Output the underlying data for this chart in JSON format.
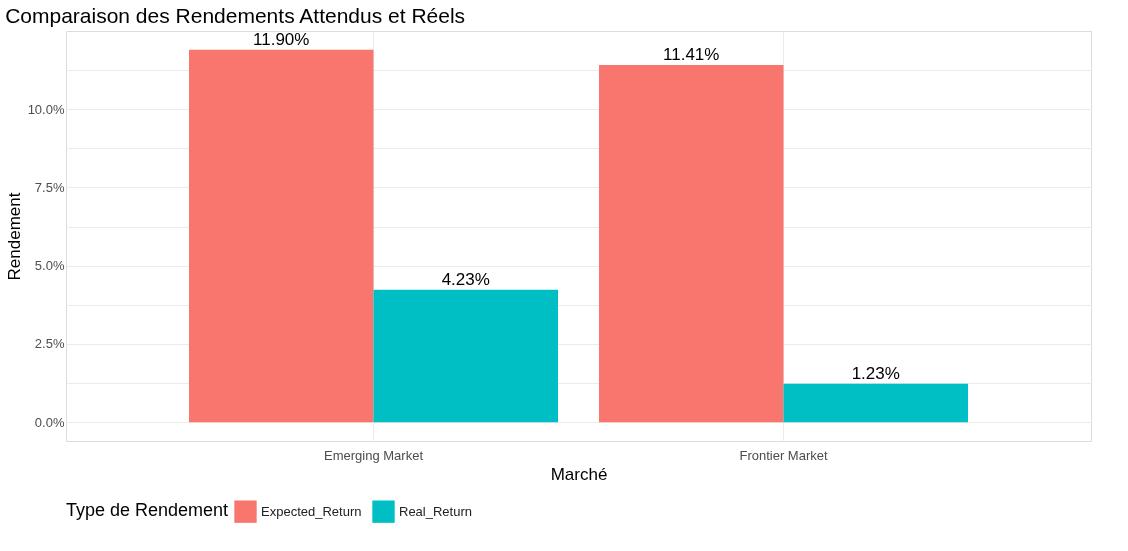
{
  "chart_data": {
    "type": "bar",
    "title": "Comparaison des Rendements Attendus et Réels",
    "xlabel": "Marché",
    "ylabel": "Rendement",
    "legend_title": "Type de Rendement",
    "categories": [
      "Emerging Market",
      "Frontier Market"
    ],
    "series": [
      {
        "name": "Expected_Return",
        "color": "#f8766d",
        "values": [
          11.9,
          11.41
        ],
        "value_labels": [
          "11.90%",
          "11.41%"
        ]
      },
      {
        "name": "Real_Return",
        "color": "#00bfc4",
        "values": [
          4.23,
          1.23
        ],
        "value_labels": [
          "4.23%",
          "1.23%"
        ]
      }
    ],
    "ylim": [
      -0.6,
      12.5
    ],
    "yticks": [
      {
        "value": 0,
        "label": "0.0%"
      },
      {
        "value": 1.25,
        "label": null
      },
      {
        "value": 2.5,
        "label": "2.5%"
      },
      {
        "value": 3.75,
        "label": null
      },
      {
        "value": 5,
        "label": "5.0%"
      },
      {
        "value": 6.25,
        "label": null
      },
      {
        "value": 7.5,
        "label": "7.5%"
      },
      {
        "value": 8.75,
        "label": null
      },
      {
        "value": 10,
        "label": "10.0%"
      },
      {
        "value": 11.25,
        "label": null
      }
    ],
    "grid": true,
    "legend": "bottom"
  }
}
